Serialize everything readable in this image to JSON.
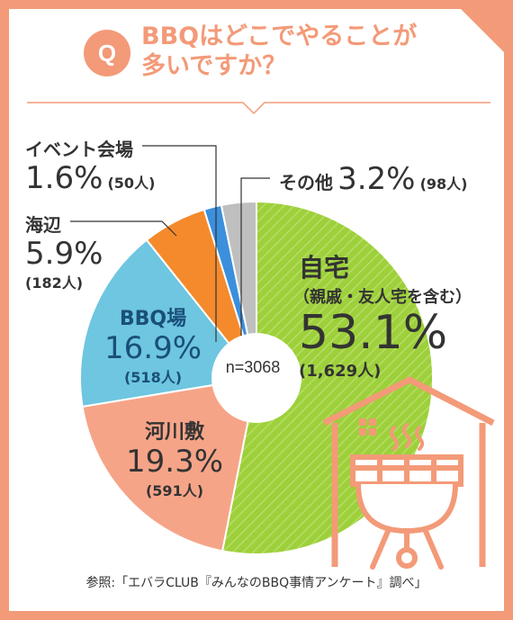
{
  "title": {
    "badge": "Q",
    "line1": "BBQはどこでやることが",
    "line2": "多いですか？"
  },
  "chart_data": {
    "type": "pie",
    "center_label": "n=3068",
    "slices": [
      {
        "name": "自宅",
        "note": "（親戚・友人宅を含む）",
        "percent": 53.1,
        "percent_label": "53.1%",
        "count_label": "(1,629人)",
        "color": "#9dd03a"
      },
      {
        "name": "河川敷",
        "percent": 19.3,
        "percent_label": "19.3%",
        "count_label": "(591人)",
        "color": "#f6a488"
      },
      {
        "name": "BBQ場",
        "percent": 16.9,
        "percent_label": "16.9%",
        "count_label": "(518人)",
        "color": "#6ec6e0"
      },
      {
        "name": "海辺",
        "percent": 5.9,
        "percent_label": "5.9%",
        "count_label": "(182人)",
        "color": "#f58a2c"
      },
      {
        "name": "イベント会場",
        "percent": 1.6,
        "percent_label": "1.6%",
        "count_label": "(50人)",
        "color": "#3b8fdc"
      },
      {
        "name": "その他",
        "percent": 3.2,
        "percent_label": "3.2%",
        "count_label": "(98人)",
        "color": "#bfbfbf"
      }
    ]
  },
  "source": "参照:「エバラCLUB『みんなのBBQ事情アンケート』調べ」",
  "colors": {
    "frame": "#f39a78",
    "accent": "#f39a78",
    "text": "#333333"
  },
  "icons": [
    "house-bbq-grill-icon"
  ]
}
